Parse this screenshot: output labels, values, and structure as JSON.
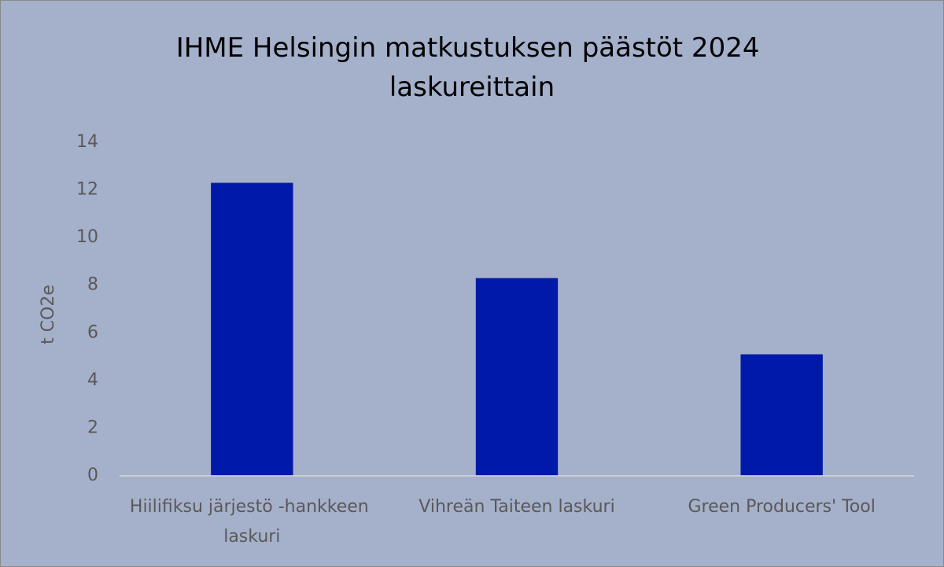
{
  "chart_data": {
    "type": "bar",
    "title": "IHME Helsingin matkustuksen päästöt 2024 laskureittain",
    "y_label": "t CO2e",
    "categories": [
      "Hiilifiksu järjestö -hankkeen laskuri",
      "Vihreän Taiteen laskuri",
      "Green Producers' Tool"
    ],
    "values": [
      12.3,
      8.3,
      5.1
    ],
    "color": "#0019a8",
    "ylim": [
      0,
      14
    ],
    "yticks": [
      0,
      2,
      4,
      6,
      8,
      10,
      12,
      14
    ],
    "grid": false
  }
}
